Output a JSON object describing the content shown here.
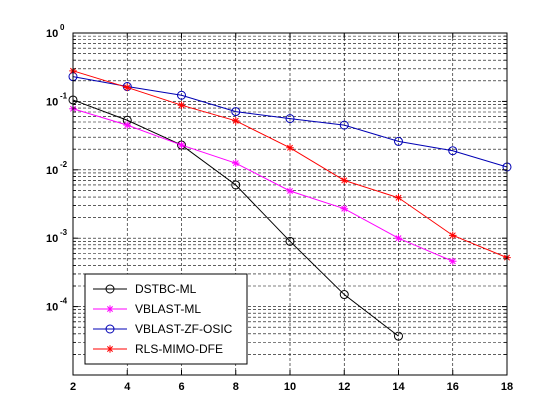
{
  "chart_data": {
    "type": "line",
    "title": "",
    "xlabel": "",
    "ylabel": "",
    "x_scale": "linear",
    "y_scale": "log",
    "xlim": [
      2,
      18
    ],
    "ylim": [
      1e-05,
      1
    ],
    "xticks": [
      2,
      4,
      6,
      8,
      10,
      12,
      14,
      16,
      18
    ],
    "ytick_labels": [
      {
        "base": "10",
        "exp": "0",
        "value": 1
      },
      {
        "base": "10",
        "exp": "-1",
        "value": 0.1
      },
      {
        "base": "10",
        "exp": "-2",
        "value": 0.01
      },
      {
        "base": "10",
        "exp": "-3",
        "value": 0.001
      },
      {
        "base": "10",
        "exp": "-4",
        "value": 0.0001
      }
    ],
    "grid": true,
    "legend_position": "bottom-left",
    "series": [
      {
        "name": "DSTBC-ML",
        "color": "#000000",
        "marker": "circle",
        "x": [
          2,
          4,
          6,
          8,
          10,
          12,
          14
        ],
        "y": [
          0.105,
          0.053,
          0.023,
          0.006,
          0.0009,
          0.00015,
          3.7e-05
        ]
      },
      {
        "name": "VBLAST-ML",
        "color": "#ff00ff",
        "marker": "star",
        "x": [
          2,
          4,
          6,
          8,
          10,
          12,
          14,
          16
        ],
        "y": [
          0.078,
          0.045,
          0.023,
          0.0125,
          0.0049,
          0.0027,
          0.001,
          0.00046
        ]
      },
      {
        "name": "VBLAST-ZF-OSIC",
        "color": "#0000b4",
        "marker": "circle",
        "x": [
          2,
          4,
          6,
          8,
          10,
          12,
          14,
          16,
          18
        ],
        "y": [
          0.23,
          0.165,
          0.123,
          0.071,
          0.056,
          0.045,
          0.026,
          0.019,
          0.011
        ]
      },
      {
        "name": "RLS-MIMO-DFE",
        "color": "#ff0000",
        "marker": "star",
        "x": [
          2,
          4,
          6,
          8,
          10,
          12,
          14,
          16,
          18
        ],
        "y": [
          0.28,
          0.16,
          0.088,
          0.052,
          0.021,
          0.007,
          0.0039,
          0.0011,
          0.00052
        ]
      }
    ]
  }
}
